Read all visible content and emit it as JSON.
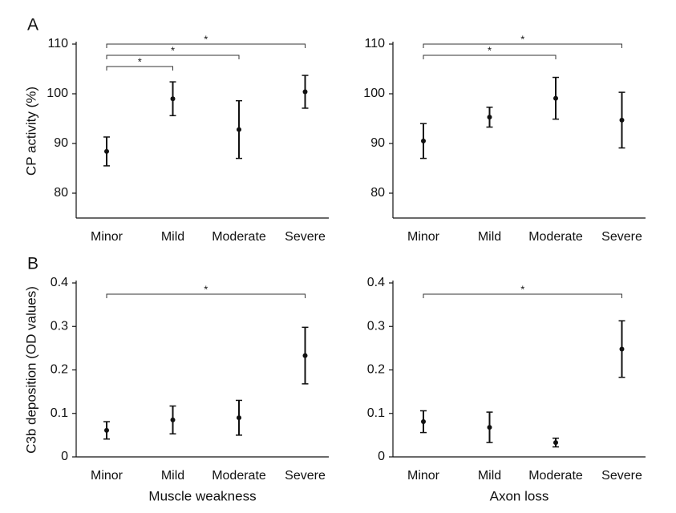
{
  "chart_data": [
    {
      "type": "errorbar",
      "panel_label": "A",
      "ylabel": "CP activity (%)",
      "categories": [
        "Minor",
        "Mild",
        "Moderate",
        "Severe"
      ],
      "values": [
        88.4,
        99.0,
        92.8,
        100.4
      ],
      "errors": [
        2.9,
        3.4,
        5.8,
        3.3
      ],
      "color": "#111111",
      "ylim": [
        75,
        110
      ],
      "yticks": [
        80,
        90,
        100,
        110
      ],
      "brackets": [
        {
          "between": [
            "Minor",
            "Severe"
          ],
          "label": "*"
        },
        {
          "between": [
            "Minor",
            "Moderate"
          ],
          "label": "*"
        },
        {
          "between": [
            "Minor",
            "Mild"
          ],
          "label": "*"
        }
      ]
    },
    {
      "type": "errorbar",
      "categories": [
        "Minor",
        "Mild",
        "Moderate",
        "Severe"
      ],
      "values": [
        90.5,
        95.3,
        99.1,
        94.7
      ],
      "errors": [
        3.5,
        2.0,
        4.2,
        5.6
      ],
      "color": "#111111",
      "ylim": [
        75,
        110
      ],
      "yticks": [
        80,
        90,
        100,
        110
      ],
      "brackets": [
        {
          "between": [
            "Minor",
            "Severe"
          ],
          "label": "*"
        },
        {
          "between": [
            "Minor",
            "Moderate"
          ],
          "label": "*"
        }
      ]
    },
    {
      "type": "errorbar",
      "panel_label": "B",
      "ylabel": "C3b deposition (OD values)",
      "xlabel": "Muscle weakness",
      "categories": [
        "Minor",
        "Mild",
        "Moderate",
        "Severe"
      ],
      "values": [
        0.061,
        0.085,
        0.09,
        0.233
      ],
      "errors": [
        0.02,
        0.032,
        0.04,
        0.065
      ],
      "color": "#111111",
      "ylim": [
        0,
        0.4
      ],
      "yticks": [
        0,
        0.1,
        0.2,
        0.3,
        0.4
      ],
      "brackets": [
        {
          "between": [
            "Minor",
            "Severe"
          ],
          "label": "*"
        }
      ]
    },
    {
      "type": "errorbar",
      "xlabel": "Axon loss",
      "categories": [
        "Minor",
        "Mild",
        "Moderate",
        "Severe"
      ],
      "values": [
        0.081,
        0.068,
        0.033,
        0.248
      ],
      "errors": [
        0.025,
        0.035,
        0.01,
        0.065
      ],
      "color": "#111111",
      "ylim": [
        0,
        0.4
      ],
      "yticks": [
        0,
        0.1,
        0.2,
        0.3,
        0.4
      ],
      "brackets": [
        {
          "between": [
            "Minor",
            "Severe"
          ],
          "label": "*"
        }
      ]
    }
  ]
}
